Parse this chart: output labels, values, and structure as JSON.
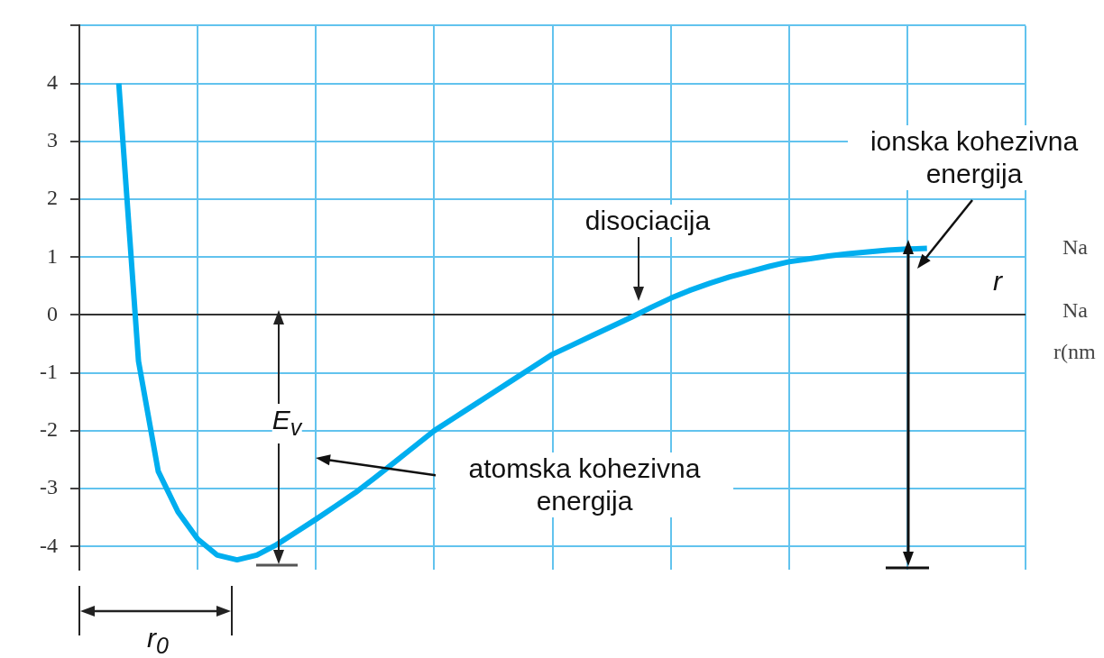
{
  "chart_data": {
    "type": "line",
    "categories": [
      null,
      null,
      null,
      null,
      null,
      null,
      null,
      null,
      null,
      null,
      null,
      null,
      null,
      null,
      null,
      null,
      null,
      null,
      null,
      null,
      null,
      null,
      null,
      null,
      null,
      null,
      null,
      null,
      null,
      null,
      null,
      null,
      null,
      null,
      null,
      null,
      null,
      null,
      null,
      null,
      null,
      null,
      null,
      null,
      null,
      null,
      null,
      null,
      null
    ],
    "series": [
      {
        "color": "#00aeef",
        "values": [
          null,
          null,
          4.0,
          -0.8,
          -2.7,
          -3.4,
          -3.87,
          -4.15,
          -4.23,
          -4.15,
          -3.97,
          -3.75,
          -3.53,
          -3.3,
          -3.07,
          -2.81,
          -2.54,
          -2.27,
          -2.0,
          -1.78,
          -1.56,
          -1.34,
          -1.12,
          -0.9,
          -0.68,
          -0.52,
          -0.36,
          -0.2,
          -0.04,
          0.13,
          0.29,
          0.43,
          0.55,
          0.66,
          0.75,
          0.84,
          0.92,
          0.97,
          1.02,
          1.06,
          1.09,
          1.12,
          1.14,
          1.15,
          null,
          null,
          null,
          null,
          null
        ]
      }
    ],
    "ylim": [
      -4.4,
      5
    ],
    "yticks": [
      -4,
      -3,
      -2,
      -1,
      0,
      1,
      2,
      3,
      4,
      {
        "value": 5,
        "label": null
      }
    ],
    "tick_labels": "y",
    "grid": true,
    "marker": "none",
    "annotations": [
      "ionska kohezivna energija",
      "disociacija",
      "E$_{v}$",
      "atomska kohezivna energija",
      "r",
      "r$_{0}$",
      "Na",
      "Na",
      "r(nm"
    ]
  }
}
